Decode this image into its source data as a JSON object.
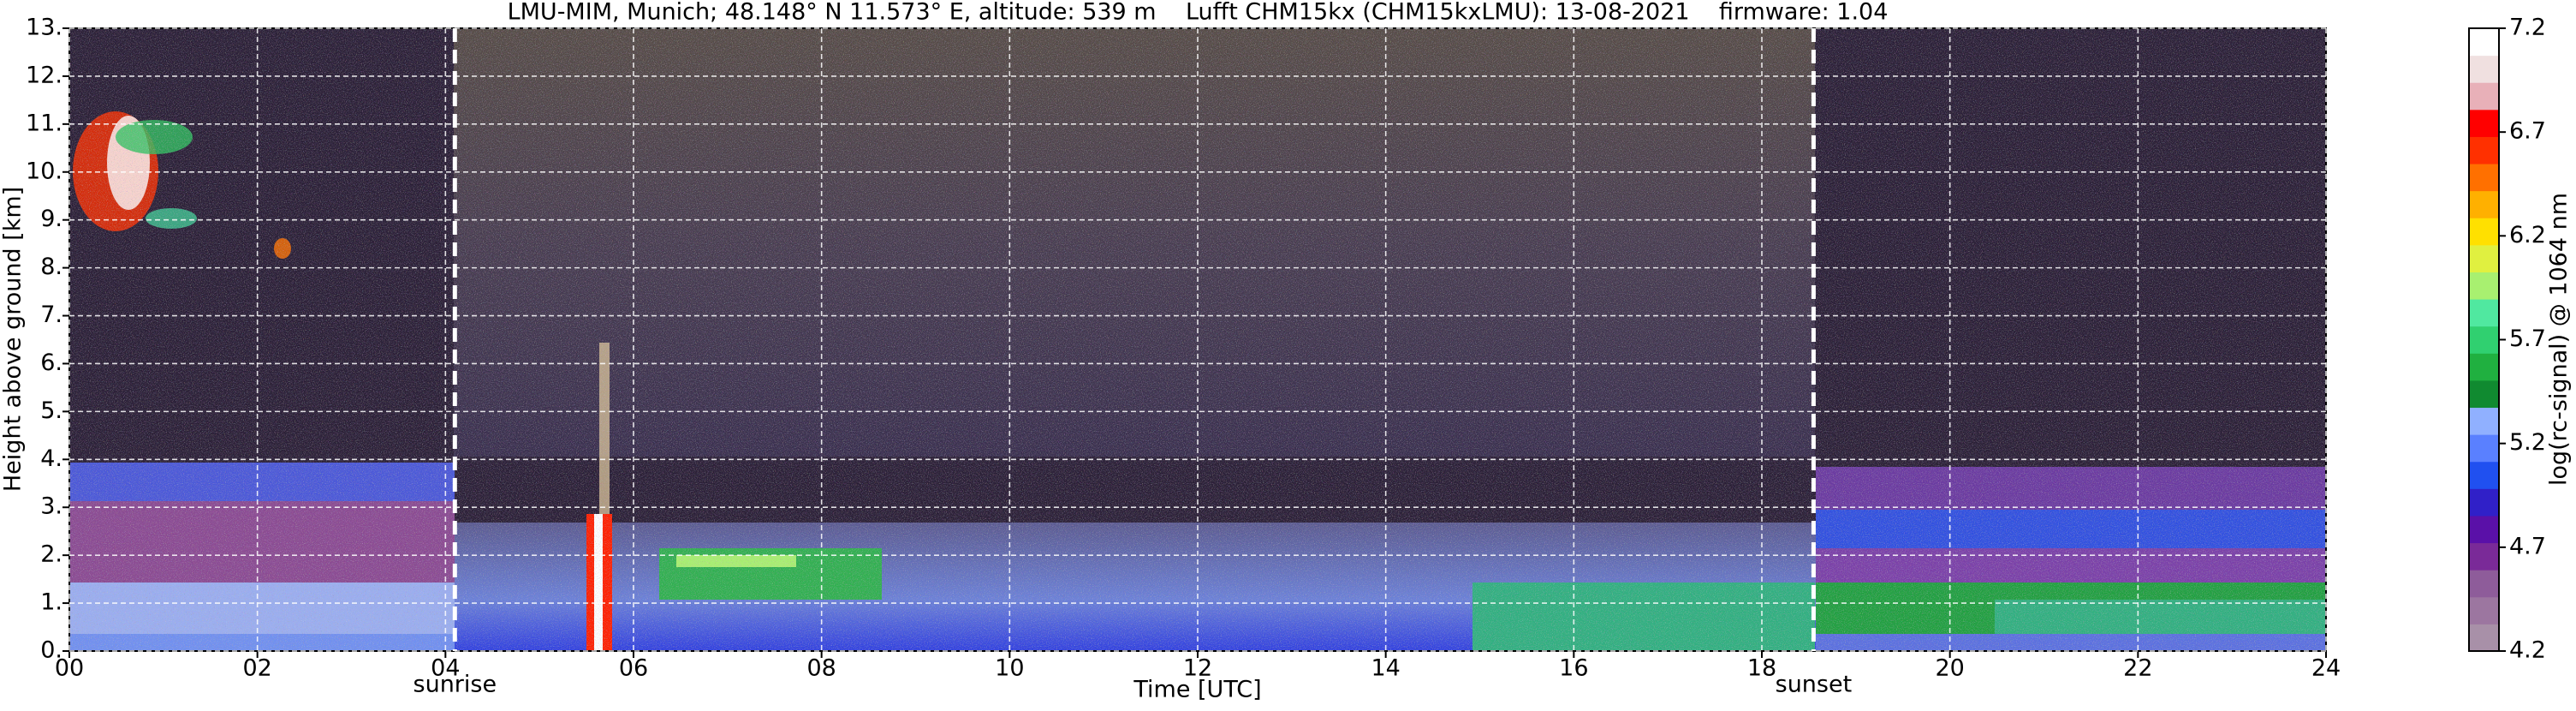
{
  "chart_data": {
    "type": "heatmap",
    "title": "LMU-MIM, Munich; 48.148° N 11.573° E, altitude: 539 m    Lufft CHM15kx (CHM15kxLMU): 13-08-2021    firmware: 1.04",
    "xlabel": "Time [UTC]",
    "ylabel": "Height above ground [km]",
    "xlim": [
      0,
      24
    ],
    "xticks": [
      {
        "value": 0,
        "label": "00"
      },
      {
        "value": 2,
        "label": "02"
      },
      {
        "value": 4,
        "label": "04"
      },
      {
        "value": 6,
        "label": "06"
      },
      {
        "value": 8,
        "label": "08"
      },
      10,
      12,
      14,
      16,
      18,
      20,
      22,
      24
    ],
    "ylim": [
      0,
      13
    ],
    "yticks": [
      {
        "value": 0,
        "label": "0."
      },
      {
        "value": 1,
        "label": "1."
      },
      {
        "value": 2,
        "label": "2."
      },
      {
        "value": 3,
        "label": "3."
      },
      {
        "value": 4,
        "label": "4."
      },
      {
        "value": 5,
        "label": "5."
      },
      {
        "value": 6,
        "label": "6."
      },
      {
        "value": 7,
        "label": "7."
      },
      {
        "value": 8,
        "label": "8."
      },
      {
        "value": 9,
        "label": "9."
      },
      {
        "value": 10,
        "label": "10."
      },
      {
        "value": 11,
        "label": "11."
      },
      {
        "value": 12,
        "label": "12."
      },
      {
        "value": 13,
        "label": "13."
      }
    ],
    "grid": true,
    "annotations": [
      {
        "text": "sunrise",
        "x": 4.1
      },
      {
        "text": "sunset",
        "x": 18.55
      }
    ],
    "colorbar": {
      "label": "log(rc-signal) @ 1064 nm",
      "clim": [
        4.2,
        7.2
      ],
      "ticks": [
        4.2,
        4.7,
        5.2,
        5.7,
        6.2,
        6.7,
        7.2
      ],
      "colormap": [
        "#a890a8",
        "#9c76a0",
        "#8e5c9a",
        "#7a2a98",
        "#5a10a8",
        "#3020c8",
        "#2050f0",
        "#5a80ff",
        "#90b0ff",
        "#108a30",
        "#20b040",
        "#30d070",
        "#50e8a0",
        "#a8f070",
        "#e0f040",
        "#ffe000",
        "#ffb000",
        "#ff7000",
        "#ff3000",
        "#ff0000",
        "#e8b0b8",
        "#f0e0e0",
        "#ffffff"
      ]
    }
  }
}
